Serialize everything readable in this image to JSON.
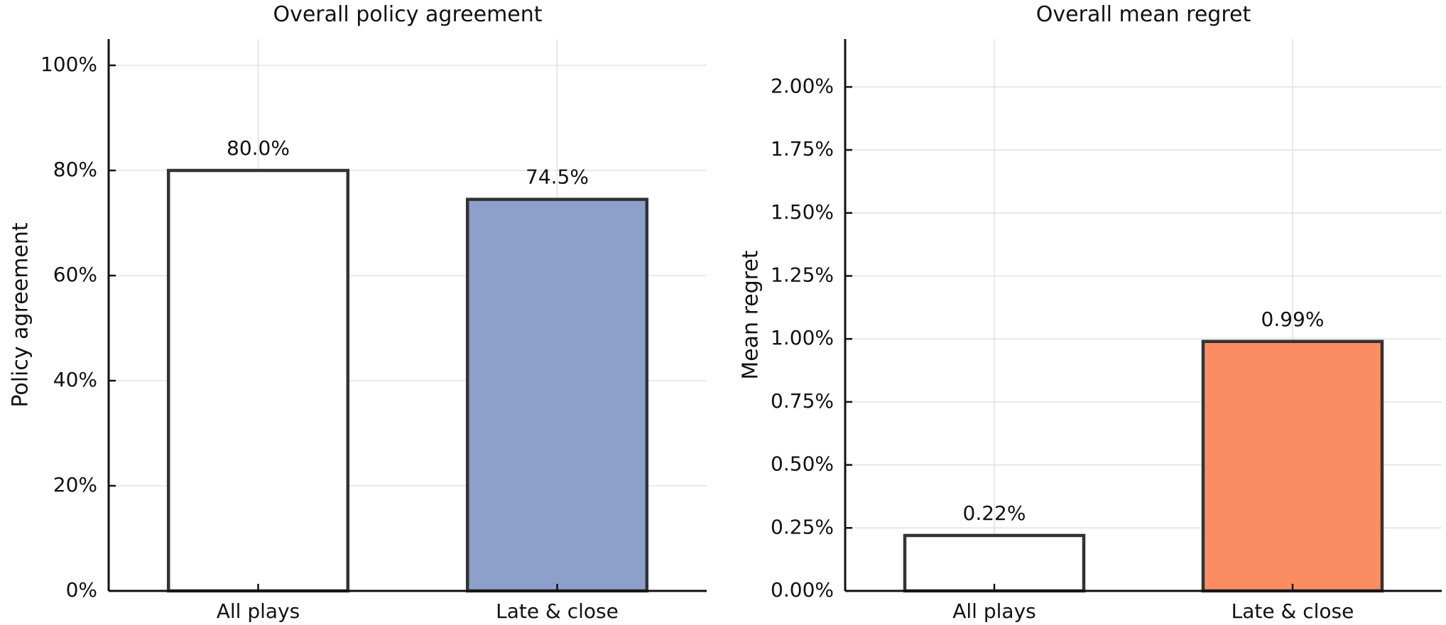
{
  "chart_data": [
    {
      "type": "bar",
      "title": "Overall policy agreement",
      "xlabel": "",
      "ylabel": "Policy agreement",
      "categories": [
        "All plays",
        "Late & close"
      ],
      "values": [
        80.0,
        74.5
      ],
      "value_labels": [
        "80.0%",
        "74.5%"
      ],
      "bar_colors": [
        "#ffffff",
        "#8da0cb"
      ],
      "ylim": [
        0,
        105
      ],
      "yticks": [
        0,
        20,
        40,
        60,
        80,
        100
      ],
      "ytick_labels": [
        "0%",
        "20%",
        "40%",
        "60%",
        "80%",
        "100%"
      ],
      "grid": true,
      "legend": "none"
    },
    {
      "type": "bar",
      "title": "Overall mean regret",
      "xlabel": "",
      "ylabel": "Mean regret",
      "categories": [
        "All plays",
        "Late & close"
      ],
      "values": [
        0.22,
        0.99
      ],
      "value_labels": [
        "0.22%",
        "0.99%"
      ],
      "bar_colors": [
        "#ffffff",
        "#fc8d62"
      ],
      "ylim": [
        0,
        2.19
      ],
      "yticks": [
        0,
        0.25,
        0.5,
        0.75,
        1.0,
        1.25,
        1.5,
        1.75,
        2.0
      ],
      "ytick_labels": [
        "0.00%",
        "0.25%",
        "0.50%",
        "0.75%",
        "1.00%",
        "1.25%",
        "1.50%",
        "1.75%",
        "2.00%"
      ],
      "grid": true,
      "legend": "none"
    }
  ]
}
